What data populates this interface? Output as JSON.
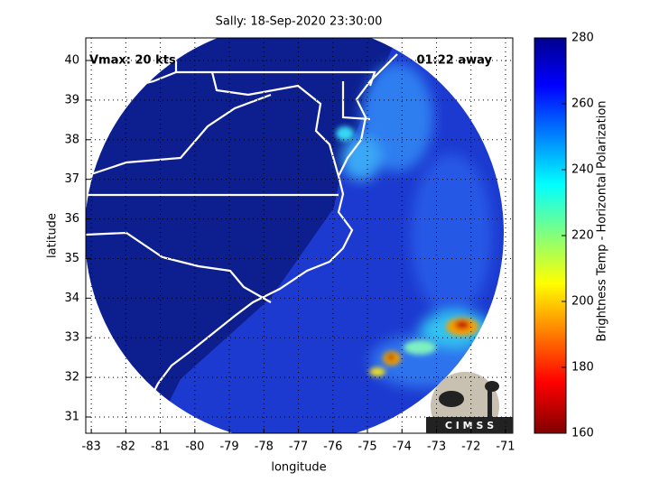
{
  "chart_data": {
    "type": "map",
    "title": "Sally: 18-Sep-2020 23:30:00",
    "annotations": [
      "Vmax: 20 kts",
      "01:22 away"
    ],
    "xlabel": "longitude",
    "ylabel": "latitude",
    "xlim": [
      -83.16,
      -70.79
    ],
    "xticks": [
      -83,
      -82,
      -81,
      -80,
      -79,
      -78,
      -77,
      -76,
      -75,
      -74,
      -73,
      -72,
      -71
    ],
    "ylim": [
      30.59,
      40.57
    ],
    "yticks": [
      31,
      32,
      33,
      34,
      35,
      36,
      37,
      38,
      39,
      40
    ],
    "grid": true,
    "colorbar": {
      "label": "Brightness Temp - Horizontal Polarization",
      "lim": [
        160,
        280
      ],
      "ticks": [
        160,
        180,
        200,
        220,
        240,
        260,
        280
      ]
    },
    "logo": "C I M S S"
  }
}
